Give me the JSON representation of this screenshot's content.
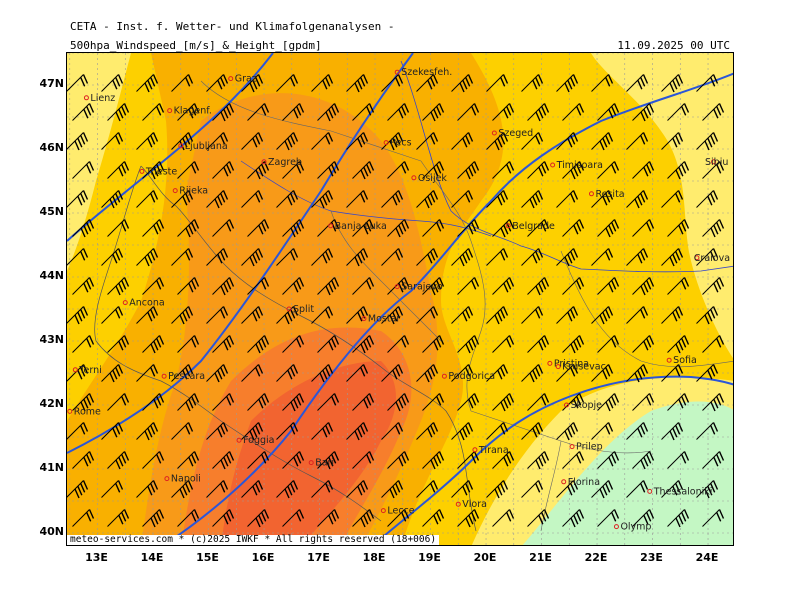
{
  "header": {
    "organization": "CETA - Inst. f. Wetter- und Klimafolgenanalysen -",
    "title": "500hpa_Windspeed_[m/s]_&_Height_[gpdm]",
    "datetime": "11.09.2025 00 UTC"
  },
  "footer": "meteo-services.com * (c)2025 IWKF * All rights reserved (18+006)",
  "axes": {
    "lat_labels": [
      "47N",
      "46N",
      "45N",
      "44N",
      "43N",
      "42N",
      "41N",
      "40N"
    ],
    "lon_labels": [
      "13E",
      "14E",
      "15E",
      "16E",
      "17E",
      "18E",
      "19E",
      "20E",
      "21E",
      "22E",
      "23E",
      "24E"
    ]
  },
  "colors": {
    "fill_weak": "#ffec6e",
    "fill_light": "#fdd000",
    "fill_medium": "#f9b000",
    "fill_strong": "#f89a18",
    "fill_stronger": "#f77e2c",
    "fill_strongest": "#f26430",
    "fill_calm": "#c4f7c4",
    "height_contour": "#2b56d8",
    "grid": "#9a9a9a",
    "city_marker": "#dd2222"
  },
  "cities": [
    {
      "name": "Graz",
      "lon": 15.4,
      "lat": 47.1
    },
    {
      "name": "Lienz",
      "lon": 12.8,
      "lat": 46.8
    },
    {
      "name": "Klagenf.",
      "lon": 14.3,
      "lat": 46.6
    },
    {
      "name": "Szekesfeh.",
      "lon": 18.4,
      "lat": 47.2
    },
    {
      "name": "Ljubljana",
      "lon": 14.5,
      "lat": 46.05
    },
    {
      "name": "Trieste",
      "lon": 13.8,
      "lat": 45.65
    },
    {
      "name": "Rijeka",
      "lon": 14.4,
      "lat": 45.35
    },
    {
      "name": "Zagreb",
      "lon": 16.0,
      "lat": 45.8
    },
    {
      "name": "Pecs",
      "lon": 18.2,
      "lat": 46.1
    },
    {
      "name": "Szeged",
      "lon": 20.15,
      "lat": 46.25
    },
    {
      "name": "Osijek",
      "lon": 18.7,
      "lat": 45.55
    },
    {
      "name": "Timisoara",
      "lon": 21.2,
      "lat": 45.75
    },
    {
      "name": "Sibiu",
      "lon": 24.1,
      "lat": 45.8
    },
    {
      "name": "Resita",
      "lon": 21.9,
      "lat": 45.3
    },
    {
      "name": "Banja Luka",
      "lon": 17.2,
      "lat": 44.8
    },
    {
      "name": "Belgrade",
      "lon": 20.4,
      "lat": 44.8
    },
    {
      "name": "Craiova",
      "lon": 23.8,
      "lat": 44.3
    },
    {
      "name": "Sarajevo",
      "lon": 18.4,
      "lat": 43.85
    },
    {
      "name": "Ancona",
      "lon": 13.5,
      "lat": 43.6
    },
    {
      "name": "Split",
      "lon": 16.45,
      "lat": 43.5
    },
    {
      "name": "Mostar",
      "lon": 17.8,
      "lat": 43.35
    },
    {
      "name": "Terni",
      "lon": 12.6,
      "lat": 42.55
    },
    {
      "name": "Pescara",
      "lon": 14.2,
      "lat": 42.45
    },
    {
      "name": "Krusevac",
      "lon": 21.3,
      "lat": 42.6
    },
    {
      "name": "Pristina",
      "lon": 21.15,
      "lat": 42.65
    },
    {
      "name": "Sofia",
      "lon": 23.3,
      "lat": 42.7
    },
    {
      "name": "Podgorica",
      "lon": 19.25,
      "lat": 42.45
    },
    {
      "name": "Rome",
      "lon": 12.5,
      "lat": 41.9
    },
    {
      "name": "Skopje",
      "lon": 21.45,
      "lat": 42.0
    },
    {
      "name": "Foggia",
      "lon": 15.55,
      "lat": 41.45
    },
    {
      "name": "Tirana",
      "lon": 19.8,
      "lat": 41.3
    },
    {
      "name": "Prilep",
      "lon": 21.55,
      "lat": 41.35
    },
    {
      "name": "Napoli",
      "lon": 14.25,
      "lat": 40.85
    },
    {
      "name": "Bari",
      "lon": 16.85,
      "lat": 41.1
    },
    {
      "name": "Florina",
      "lon": 21.4,
      "lat": 40.8
    },
    {
      "name": "Thessaloniki",
      "lon": 22.95,
      "lat": 40.65
    },
    {
      "name": "Lecce",
      "lon": 18.15,
      "lat": 40.35
    },
    {
      "name": "Vlora",
      "lon": 19.5,
      "lat": 40.45
    },
    {
      "name": "Olymp",
      "lon": 22.35,
      "lat": 40.1
    }
  ]
}
